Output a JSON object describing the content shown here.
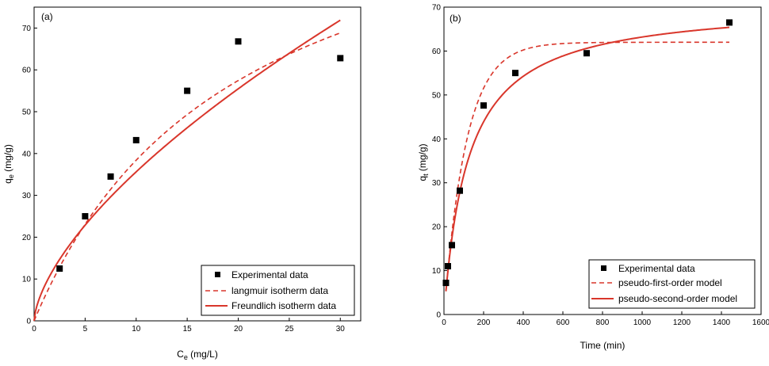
{
  "chart_data": [
    {
      "type": "scatter",
      "panel_label": "(a)",
      "xlabel_main": "C",
      "xlabel_sub": "e",
      "xlabel_unit": " (mg/L)",
      "ylabel_main": "q",
      "ylabel_sub": "e",
      "ylabel_unit": " (mg/g)",
      "xlim": [
        0,
        32
      ],
      "ylim": [
        0,
        75
      ],
      "xticks": [
        0,
        5,
        10,
        15,
        20,
        25,
        30
      ],
      "yticks": [
        0,
        10,
        20,
        30,
        40,
        50,
        60,
        70
      ],
      "legend_position": "bottom-right",
      "colors": {
        "points": "#000000",
        "fit": "#d9362b"
      },
      "series": [
        {
          "name": "Experimental data",
          "kind": "points",
          "x": [
            2.5,
            5,
            7.5,
            10,
            15,
            20,
            30
          ],
          "y": [
            12.5,
            25,
            34.5,
            43.2,
            55,
            66.8,
            62.8
          ]
        },
        {
          "name": "langmuir isotherm data",
          "kind": "dashed",
          "model": "langmuir",
          "params": {
            "qmax": 114,
            "KL": 0.0508
          },
          "x_range": [
            0,
            30
          ]
        },
        {
          "name": "Freundlich isotherm data",
          "kind": "solid",
          "model": "freundlich",
          "params": {
            "KF": 8.18,
            "n": 1.565
          },
          "x_range": [
            0,
            30
          ]
        }
      ]
    },
    {
      "type": "scatter",
      "panel_label": "(b)",
      "xlabel_main": "Time (min)",
      "xlabel_sub": "",
      "xlabel_unit": "",
      "ylabel_main": "q",
      "ylabel_sub": "t",
      "ylabel_unit": " (mg/g)",
      "xlim": [
        0,
        1600
      ],
      "ylim": [
        0,
        70
      ],
      "xticks": [
        0,
        200,
        400,
        600,
        800,
        1000,
        1200,
        1400,
        1600
      ],
      "yticks": [
        0,
        10,
        20,
        30,
        40,
        50,
        60,
        70
      ],
      "legend_position": "bottom-right",
      "colors": {
        "points": "#000000",
        "fit": "#d9362b"
      },
      "series": [
        {
          "name": "Experimental data",
          "kind": "points",
          "x": [
            10,
            20,
            40,
            80,
            200,
            360,
            720,
            1440
          ],
          "y": [
            7.2,
            11,
            15.8,
            28.2,
            47.6,
            55,
            59.5,
            66.5
          ]
        },
        {
          "name": "pseudo-first-order model",
          "kind": "dashed",
          "model": "pfo",
          "params": {
            "qe": 62,
            "k1": 0.0089
          },
          "x_range": [
            10,
            1440
          ]
        },
        {
          "name": "pseudo-second-order model",
          "kind": "solid",
          "model": "pso",
          "params": {
            "qe": 71,
            "k2": 0.000114
          },
          "x_range": [
            10,
            1440
          ]
        }
      ]
    }
  ]
}
